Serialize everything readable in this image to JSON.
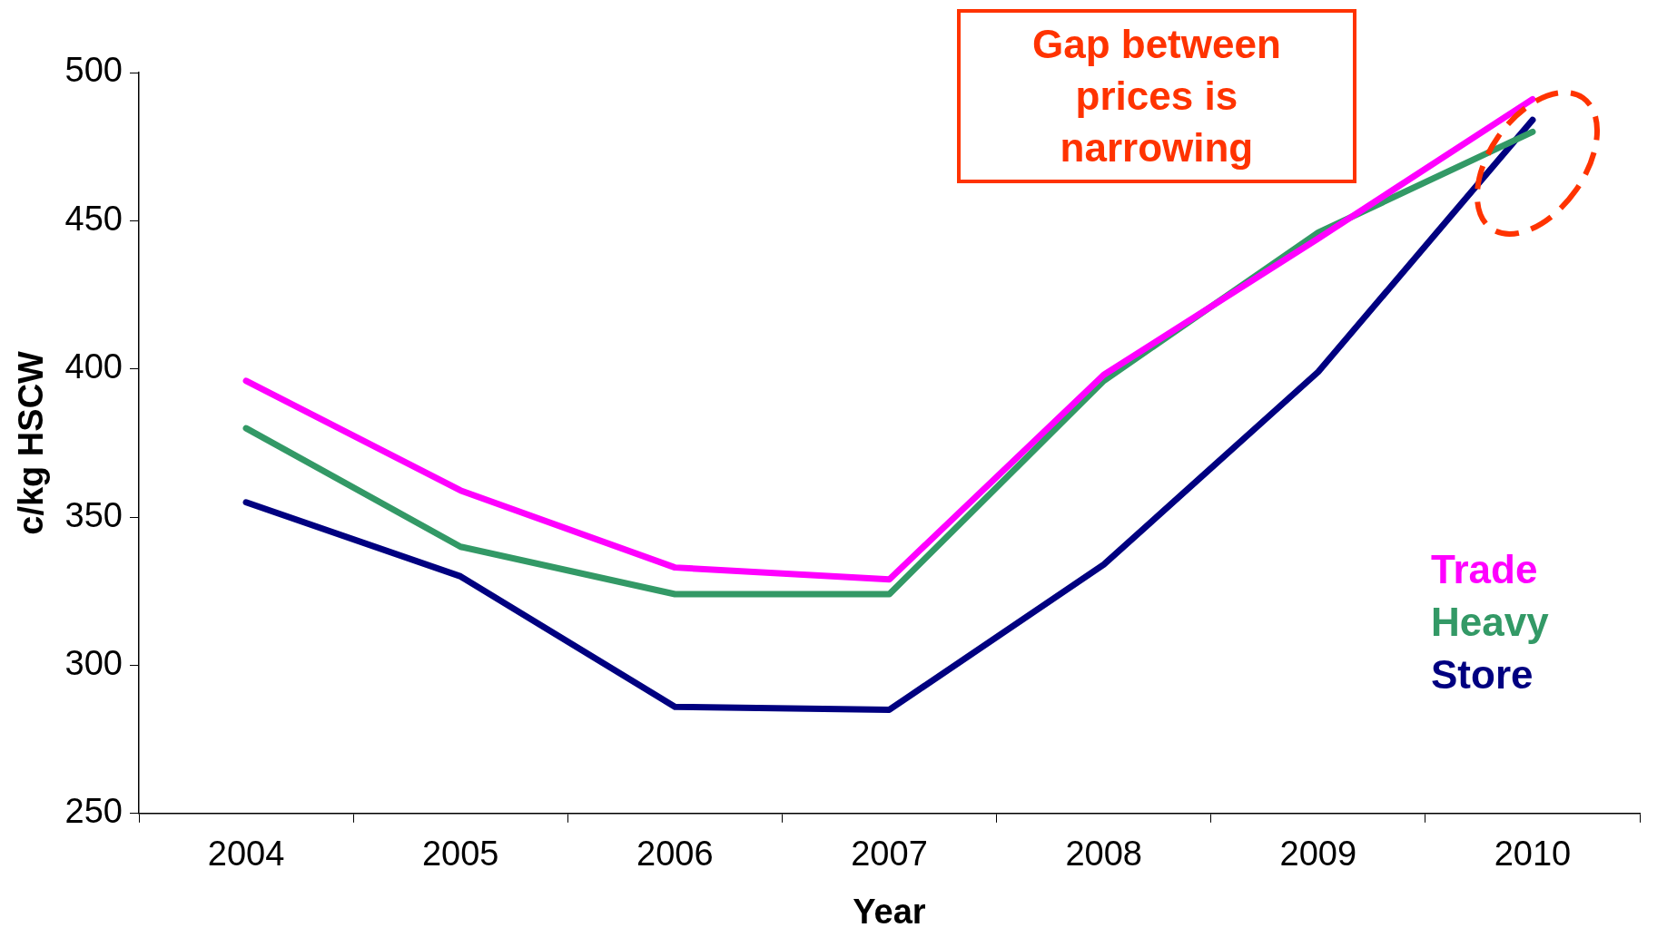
{
  "chart_data": {
    "type": "line",
    "xlabel": "Year",
    "ylabel": "c/kg HSCW",
    "categories": [
      "2004",
      "2005",
      "2006",
      "2007",
      "2008",
      "2009",
      "2010"
    ],
    "series": [
      {
        "name": "Trade",
        "color": "#ff00ff",
        "values": [
          396,
          359,
          333,
          329,
          398,
          444,
          491
        ]
      },
      {
        "name": "Heavy",
        "color": "#339966",
        "values": [
          380,
          340,
          324,
          324,
          396,
          446,
          480
        ]
      },
      {
        "name": "Store",
        "color": "#000080",
        "values": [
          355,
          330,
          286,
          285,
          334,
          399,
          484
        ]
      }
    ],
    "ylim": [
      250,
      500
    ],
    "yticks": [
      250,
      300,
      350,
      400,
      450,
      500
    ],
    "grid": false,
    "legend": "bottom right",
    "marker": "none",
    "line_style": "solid",
    "annotations": [
      "Gap between prices is narrowing"
    ]
  }
}
